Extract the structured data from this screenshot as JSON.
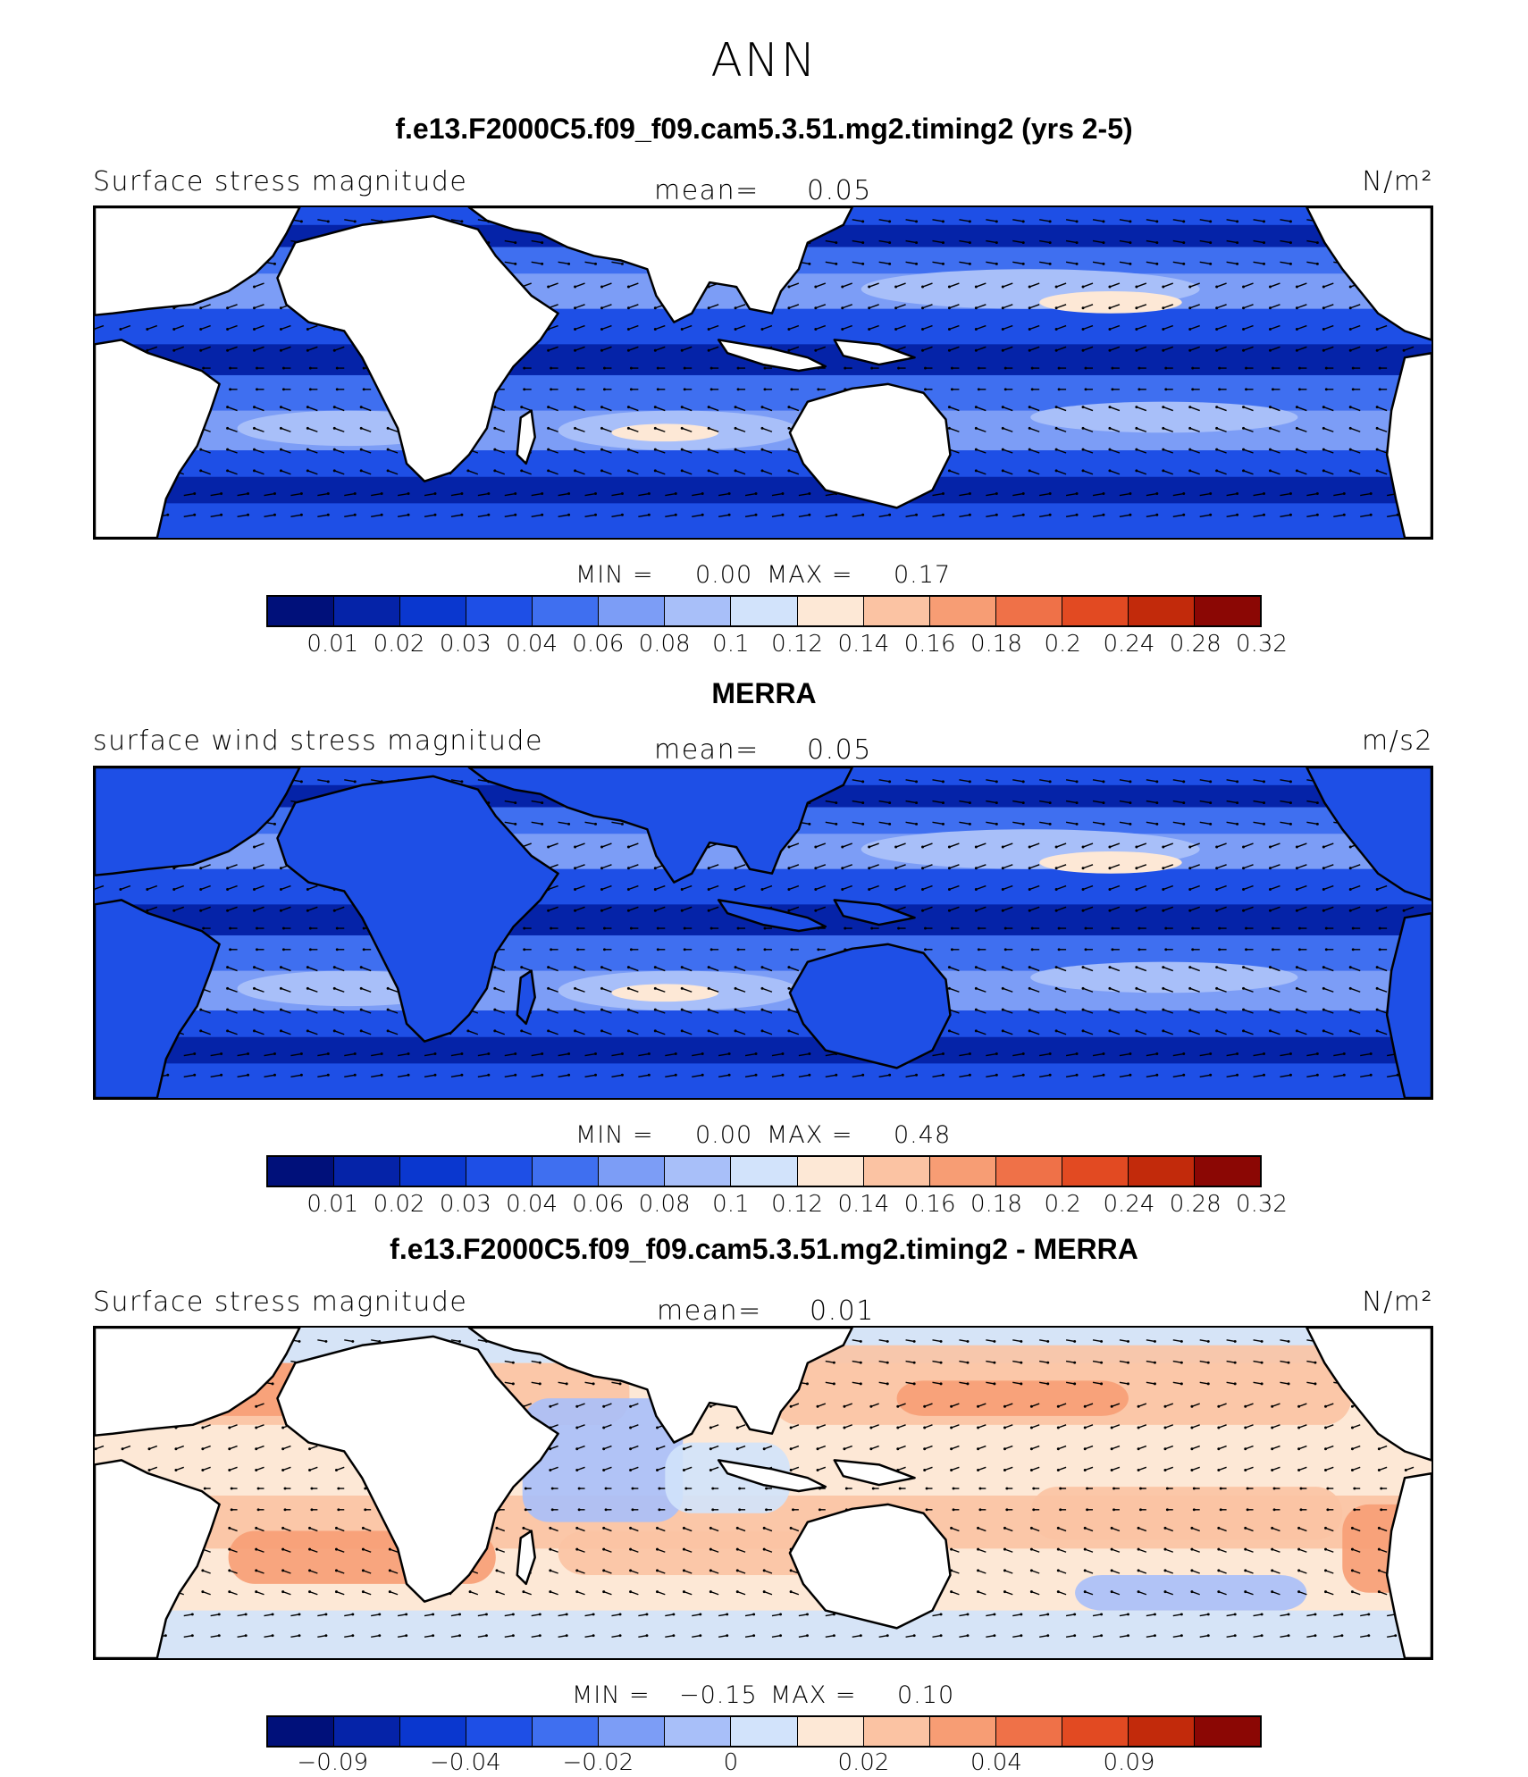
{
  "header": {
    "title": "ANN"
  },
  "colors": {
    "scale": [
      "#00107a",
      "#0523a8",
      "#0a37cf",
      "#1e4fe6",
      "#3f6ff0",
      "#7c9df6",
      "#a8bff9",
      "#d2e3fb",
      "#fde8d6",
      "#fbc3a3",
      "#f79d74",
      "#ef7148",
      "#e24a22",
      "#c22a0b",
      "#8b0704"
    ],
    "land": "#ffffff",
    "coast": "#000000"
  },
  "panels": [
    {
      "title": "f.e13.F2000C5.f09_f09.cam5.3.51.mg2.timing2 (yrs 2-5)",
      "left_label": "Surface stress magnitude",
      "mean_label": "mean=",
      "mean_value": "0.05",
      "units": "N/m²",
      "field": "model",
      "min_label": "MIN =",
      "min_value": "0.00",
      "max_label": "MAX =",
      "max_value": "0.17",
      "colorbar_ticks": [
        "0.01",
        "0.02",
        "0.03",
        "0.04",
        "0.06",
        "0.08",
        "0.1",
        "0.12",
        "0.14",
        "0.16",
        "0.18",
        "0.2",
        "0.24",
        "0.28",
        "0.32"
      ]
    },
    {
      "title": "MERRA",
      "left_label": "surface wind stress magnitude",
      "mean_label": "mean=",
      "mean_value": "0.05",
      "units": "m/s2",
      "field": "obs",
      "min_label": "MIN =",
      "min_value": "0.00",
      "max_label": "MAX =",
      "max_value": "0.48",
      "colorbar_ticks": [
        "0.01",
        "0.02",
        "0.03",
        "0.04",
        "0.06",
        "0.08",
        "0.1",
        "0.12",
        "0.14",
        "0.16",
        "0.18",
        "0.2",
        "0.24",
        "0.28",
        "0.32"
      ]
    },
    {
      "title": "f.e13.F2000C5.f09_f09.cam5.3.51.mg2.timing2 - MERRA",
      "left_label": "Surface stress magnitude",
      "mean_label": "mean=",
      "mean_value": "0.01",
      "units": "N/m²",
      "field": "diff",
      "min_label": "MIN =",
      "min_value": "−0.15",
      "max_label": "MAX =",
      "max_value": "0.10",
      "colorbar_ticks": [
        "−0.09",
        "",
        "−0.04",
        "",
        "−0.02",
        "",
        "0",
        "",
        "0.02",
        "",
        "0.04",
        "",
        "0.09",
        ""
      ]
    }
  ]
}
